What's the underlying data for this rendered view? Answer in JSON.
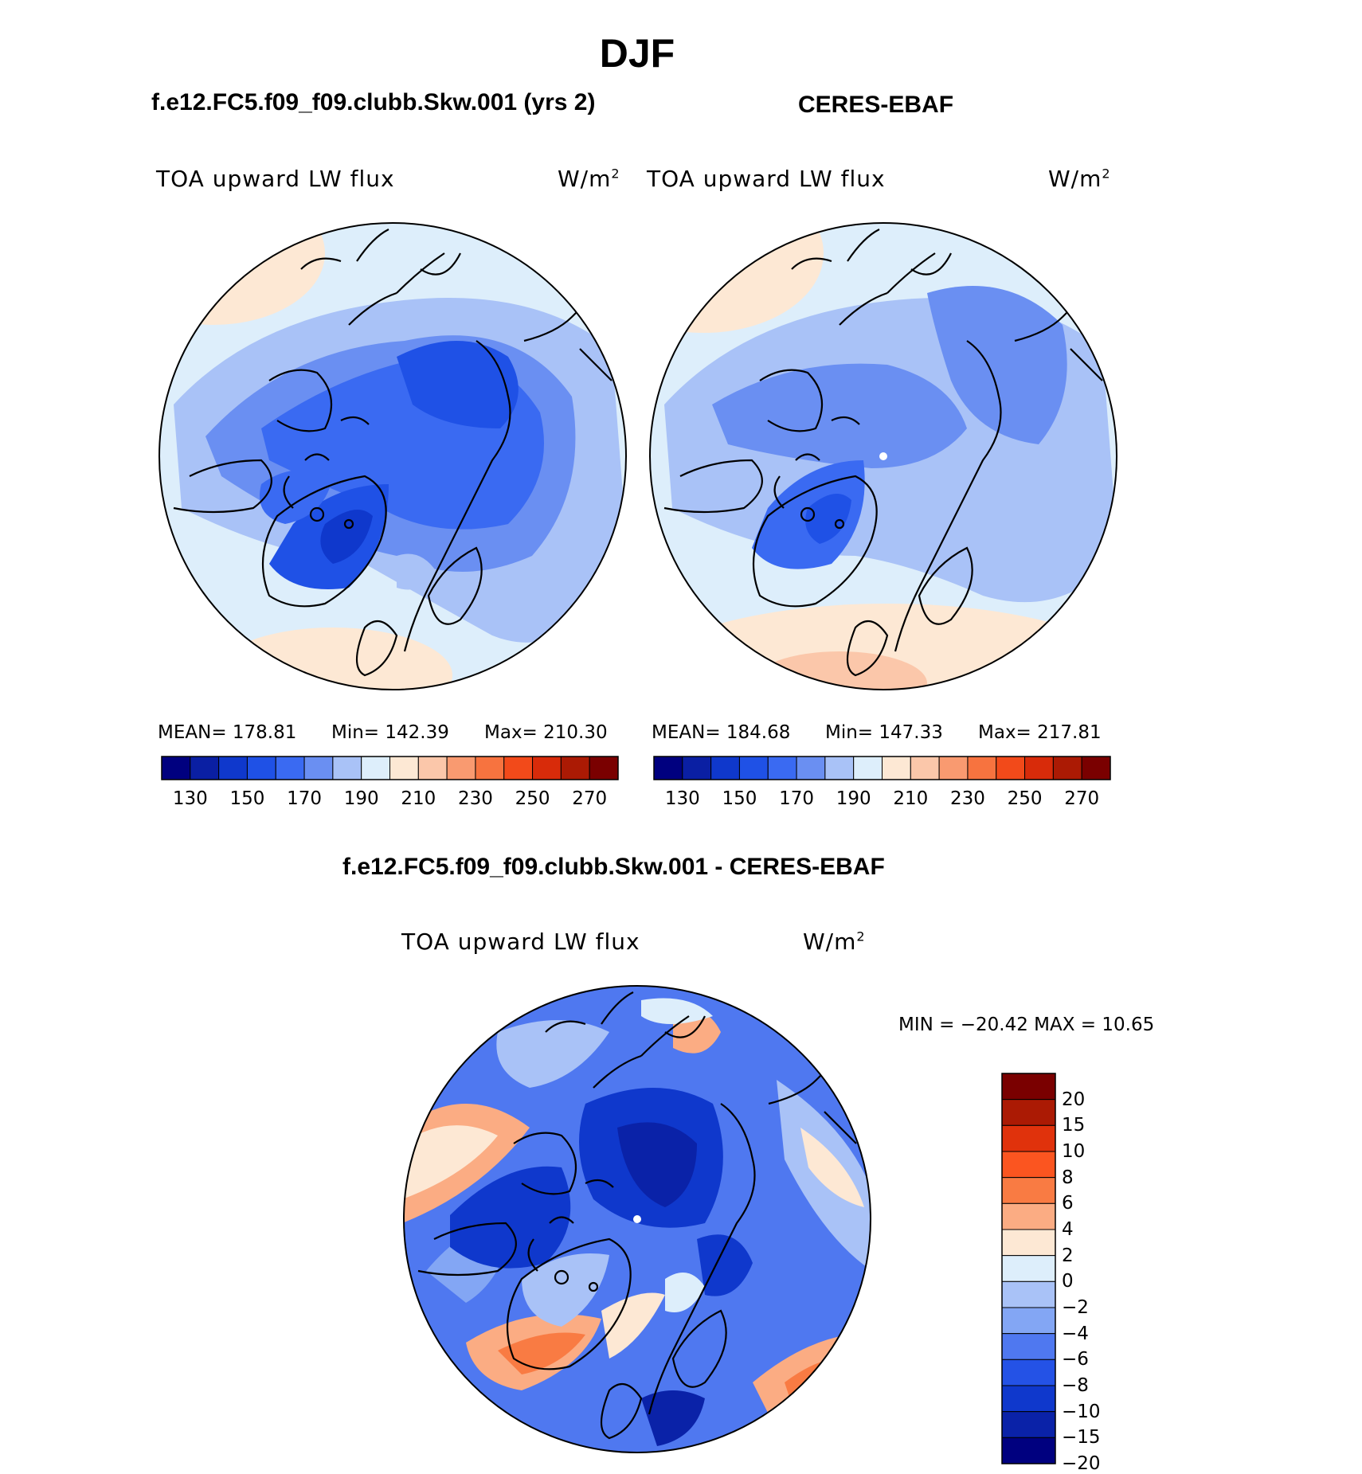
{
  "page": {
    "title": "DJF"
  },
  "left_panel": {
    "subtitle": "f.e12.FC5.f09_f09.clubb.Skw.001 (yrs 2)",
    "variable": "TOA upward LW flux",
    "units_base": "W/m",
    "units_exp": "2",
    "stats": {
      "mean": "MEAN= 178.81",
      "min": "Min= 142.39",
      "max": "Max= 210.30"
    }
  },
  "right_panel": {
    "subtitle": "CERES-EBAF",
    "variable": "TOA upward LW flux",
    "units_base": "W/m",
    "units_exp": "2",
    "stats": {
      "mean": "MEAN= 184.68",
      "min": "Min= 147.33",
      "max": "Max= 217.81"
    }
  },
  "diff_panel": {
    "subtitle": "f.e12.FC5.f09_f09.clubb.Skw.001 - CERES-EBAF",
    "variable": "TOA upward LW flux",
    "units_base": "W/m",
    "units_exp": "2",
    "stats": "MIN = −20.42 MAX =   10.65"
  },
  "colorbars": {
    "abs": {
      "labels": [
        "130",
        "150",
        "170",
        "190",
        "210",
        "230",
        "250",
        "270"
      ],
      "colors": [
        "#00007f",
        "#0a1fa3",
        "#0f38cc",
        "#1f51e6",
        "#3a6af2",
        "#6a8ff2",
        "#a9c2f7",
        "#ddeefb",
        "#fde8d4",
        "#fbc7aa",
        "#f99a70",
        "#f7733f",
        "#f24a1a",
        "#d82b0a",
        "#ab1a04",
        "#7a0000"
      ]
    },
    "diff": {
      "labels": [
        "20",
        "15",
        "10",
        "8",
        "6",
        "4",
        "2",
        "0",
        "−2",
        "−4",
        "−6",
        "−8",
        "−10",
        "−15",
        "−20"
      ],
      "colors": [
        "#7a0000",
        "#ab1a04",
        "#e0320c",
        "#fb5520",
        "#f97b43",
        "#fbac83",
        "#fde8d4",
        "#ddeefb",
        "#a9c2f7",
        "#83a6f4",
        "#4f78f0",
        "#2452e6",
        "#0f38cc",
        "#0a22a8",
        "#00007f"
      ]
    }
  }
}
